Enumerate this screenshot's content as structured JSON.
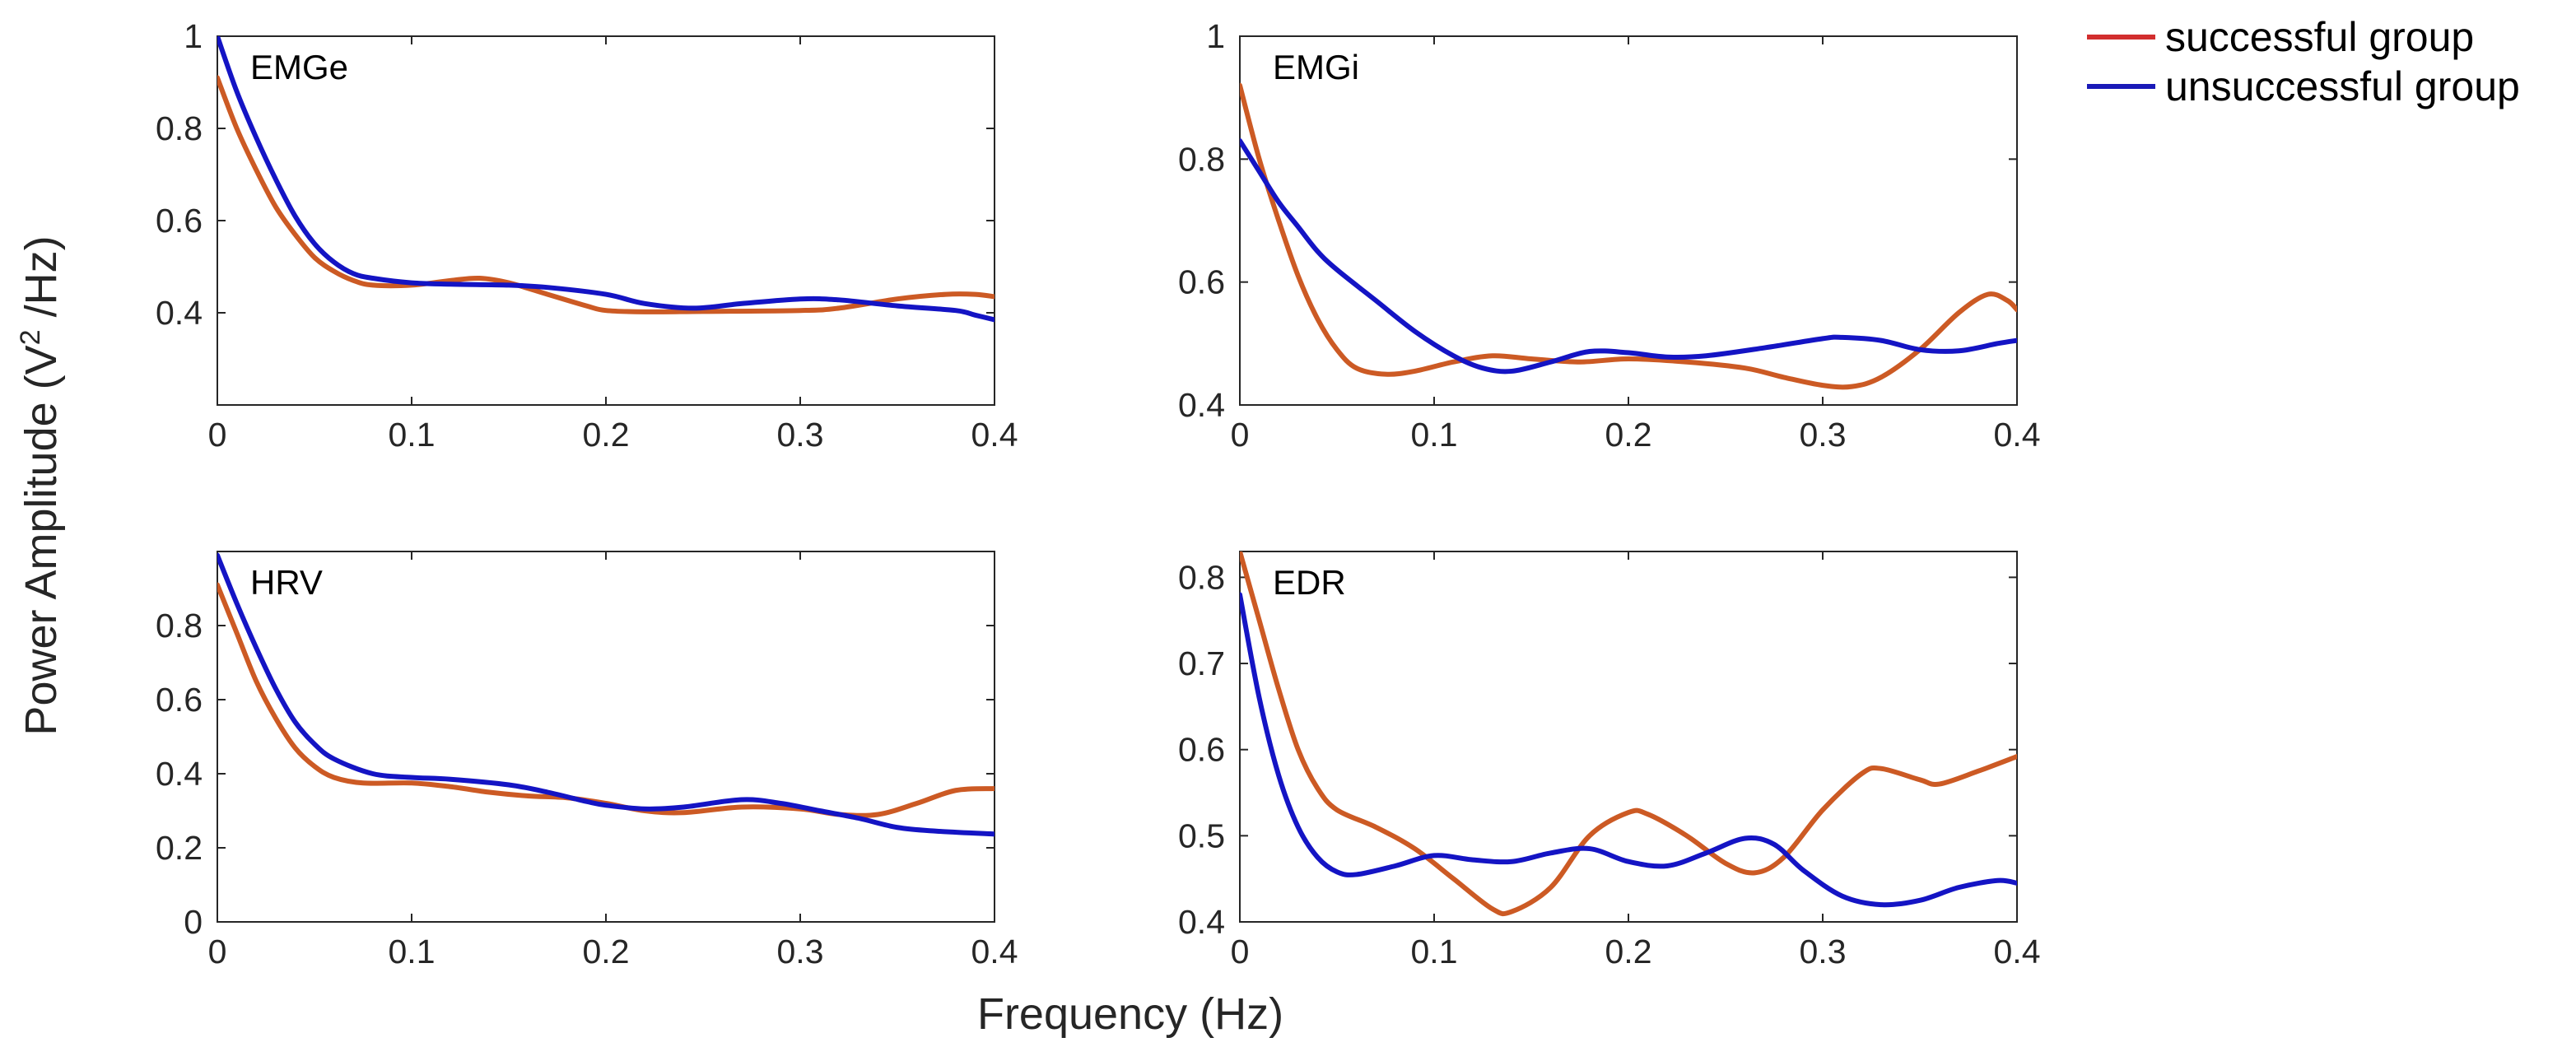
{
  "ylabel_parts": {
    "prefix": "Power Amplitude (V",
    "superscript": "2",
    "suffix": " /Hz)"
  },
  "xlabel": "Frequency (Hz)",
  "legend": [
    {
      "label": "successful group",
      "color": "#d22e2e"
    },
    {
      "label": "unsuccessful group",
      "color": "#1a1ab8"
    }
  ],
  "colors": {
    "successful_line": "#cc5a24",
    "unsuccessful_line": "#1414c4"
  },
  "chart_data": [
    {
      "type": "line",
      "title": "EMGe",
      "xlim": [
        0,
        0.4
      ],
      "ylim": [
        0.2,
        1.0
      ],
      "xticks": [
        "0",
        "0.1",
        "0.2",
        "0.3",
        "0.4"
      ],
      "xtick_values": [
        0,
        0.1,
        0.2,
        0.3,
        0.4
      ],
      "yticks": [
        "0.4",
        "0.6",
        "0.8",
        "1"
      ],
      "ytick_values": [
        0.4,
        0.6,
        0.8,
        1.0
      ],
      "series": [
        {
          "name": "successful group",
          "points": [
            [
              0,
              0.91
            ],
            [
              0.01,
              0.8
            ],
            [
              0.02,
              0.71
            ],
            [
              0.03,
              0.63
            ],
            [
              0.04,
              0.57
            ],
            [
              0.05,
              0.52
            ],
            [
              0.06,
              0.49
            ],
            [
              0.07,
              0.47
            ],
            [
              0.08,
              0.46
            ],
            [
              0.1,
              0.46
            ],
            [
              0.12,
              0.47
            ],
            [
              0.135,
              0.475
            ],
            [
              0.15,
              0.465
            ],
            [
              0.17,
              0.44
            ],
            [
              0.19,
              0.415
            ],
            [
              0.2,
              0.405
            ],
            [
              0.22,
              0.402
            ],
            [
              0.25,
              0.403
            ],
            [
              0.3,
              0.405
            ],
            [
              0.32,
              0.41
            ],
            [
              0.35,
              0.43
            ],
            [
              0.375,
              0.44
            ],
            [
              0.39,
              0.44
            ],
            [
              0.4,
              0.435
            ]
          ]
        },
        {
          "name": "unsuccessful group",
          "points": [
            [
              0,
              1.0
            ],
            [
              0.01,
              0.88
            ],
            [
              0.02,
              0.78
            ],
            [
              0.03,
              0.69
            ],
            [
              0.04,
              0.61
            ],
            [
              0.05,
              0.55
            ],
            [
              0.06,
              0.51
            ],
            [
              0.07,
              0.485
            ],
            [
              0.08,
              0.475
            ],
            [
              0.1,
              0.465
            ],
            [
              0.12,
              0.462
            ],
            [
              0.15,
              0.46
            ],
            [
              0.17,
              0.455
            ],
            [
              0.2,
              0.44
            ],
            [
              0.22,
              0.42
            ],
            [
              0.245,
              0.41
            ],
            [
              0.27,
              0.42
            ],
            [
              0.3,
              0.43
            ],
            [
              0.32,
              0.428
            ],
            [
              0.35,
              0.415
            ],
            [
              0.38,
              0.405
            ],
            [
              0.39,
              0.395
            ],
            [
              0.4,
              0.385
            ]
          ]
        }
      ]
    },
    {
      "type": "line",
      "title": "EMGi",
      "xlim": [
        0,
        0.4
      ],
      "ylim": [
        0.4,
        1.0
      ],
      "xticks": [
        "0",
        "0.1",
        "0.2",
        "0.3",
        "0.4"
      ],
      "xtick_values": [
        0,
        0.1,
        0.2,
        0.3,
        0.4
      ],
      "yticks": [
        "0.4",
        "0.6",
        "0.8",
        "1"
      ],
      "ytick_values": [
        0.4,
        0.6,
        0.8,
        1.0
      ],
      "series": [
        {
          "name": "successful group",
          "points": [
            [
              0,
              0.92
            ],
            [
              0.01,
              0.8
            ],
            [
              0.02,
              0.7
            ],
            [
              0.03,
              0.61
            ],
            [
              0.04,
              0.54
            ],
            [
              0.05,
              0.49
            ],
            [
              0.06,
              0.46
            ],
            [
              0.075,
              0.45
            ],
            [
              0.09,
              0.455
            ],
            [
              0.11,
              0.47
            ],
            [
              0.13,
              0.48
            ],
            [
              0.15,
              0.475
            ],
            [
              0.175,
              0.47
            ],
            [
              0.2,
              0.475
            ],
            [
              0.23,
              0.47
            ],
            [
              0.26,
              0.46
            ],
            [
              0.28,
              0.445
            ],
            [
              0.3,
              0.432
            ],
            [
              0.315,
              0.43
            ],
            [
              0.33,
              0.445
            ],
            [
              0.35,
              0.49
            ],
            [
              0.37,
              0.55
            ],
            [
              0.385,
              0.58
            ],
            [
              0.395,
              0.57
            ],
            [
              0.4,
              0.555
            ]
          ]
        },
        {
          "name": "unsuccessful group",
          "points": [
            [
              0,
              0.83
            ],
            [
              0.01,
              0.78
            ],
            [
              0.02,
              0.73
            ],
            [
              0.03,
              0.69
            ],
            [
              0.04,
              0.65
            ],
            [
              0.05,
              0.62
            ],
            [
              0.07,
              0.57
            ],
            [
              0.09,
              0.52
            ],
            [
              0.11,
              0.48
            ],
            [
              0.125,
              0.46
            ],
            [
              0.14,
              0.455
            ],
            [
              0.16,
              0.47
            ],
            [
              0.18,
              0.487
            ],
            [
              0.2,
              0.485
            ],
            [
              0.22,
              0.478
            ],
            [
              0.24,
              0.48
            ],
            [
              0.27,
              0.493
            ],
            [
              0.3,
              0.508
            ],
            [
              0.31,
              0.51
            ],
            [
              0.33,
              0.505
            ],
            [
              0.35,
              0.49
            ],
            [
              0.37,
              0.488
            ],
            [
              0.39,
              0.5
            ],
            [
              0.4,
              0.505
            ]
          ]
        }
      ]
    },
    {
      "type": "line",
      "title": "HRV",
      "xlim": [
        0,
        0.4
      ],
      "ylim": [
        0,
        1.0
      ],
      "xticks": [
        "0",
        "0.1",
        "0.2",
        "0.3",
        "0.4"
      ],
      "xtick_values": [
        0,
        0.1,
        0.2,
        0.3,
        0.4
      ],
      "yticks": [
        "0",
        "0.2",
        "0.4",
        "0.6",
        "0.8"
      ],
      "ytick_values": [
        0,
        0.2,
        0.4,
        0.6,
        0.8
      ],
      "series": [
        {
          "name": "successful group",
          "points": [
            [
              0,
              0.91
            ],
            [
              0.01,
              0.78
            ],
            [
              0.02,
              0.65
            ],
            [
              0.03,
              0.55
            ],
            [
              0.04,
              0.47
            ],
            [
              0.05,
              0.42
            ],
            [
              0.06,
              0.39
            ],
            [
              0.075,
              0.375
            ],
            [
              0.1,
              0.375
            ],
            [
              0.12,
              0.365
            ],
            [
              0.14,
              0.35
            ],
            [
              0.16,
              0.34
            ],
            [
              0.18,
              0.335
            ],
            [
              0.2,
              0.32
            ],
            [
              0.22,
              0.3
            ],
            [
              0.24,
              0.295
            ],
            [
              0.27,
              0.31
            ],
            [
              0.3,
              0.305
            ],
            [
              0.32,
              0.29
            ],
            [
              0.34,
              0.29
            ],
            [
              0.36,
              0.32
            ],
            [
              0.38,
              0.355
            ],
            [
              0.4,
              0.36
            ]
          ]
        },
        {
          "name": "unsuccessful group",
          "points": [
            [
              0,
              0.99
            ],
            [
              0.01,
              0.86
            ],
            [
              0.02,
              0.74
            ],
            [
              0.03,
              0.63
            ],
            [
              0.04,
              0.54
            ],
            [
              0.05,
              0.48
            ],
            [
              0.06,
              0.44
            ],
            [
              0.08,
              0.4
            ],
            [
              0.1,
              0.39
            ],
            [
              0.12,
              0.385
            ],
            [
              0.15,
              0.37
            ],
            [
              0.17,
              0.35
            ],
            [
              0.19,
              0.325
            ],
            [
              0.2,
              0.315
            ],
            [
              0.22,
              0.305
            ],
            [
              0.24,
              0.31
            ],
            [
              0.27,
              0.33
            ],
            [
              0.29,
              0.32
            ],
            [
              0.31,
              0.3
            ],
            [
              0.33,
              0.28
            ],
            [
              0.35,
              0.255
            ],
            [
              0.37,
              0.245
            ],
            [
              0.4,
              0.237
            ]
          ]
        }
      ]
    },
    {
      "type": "line",
      "title": "EDR",
      "xlim": [
        0,
        0.4
      ],
      "ylim": [
        0.4,
        0.83
      ],
      "xticks": [
        "0",
        "0.1",
        "0.2",
        "0.3",
        "0.4"
      ],
      "xtick_values": [
        0,
        0.1,
        0.2,
        0.3,
        0.4
      ],
      "yticks": [
        "0.4",
        "0.5",
        "0.6",
        "0.7",
        "0.8"
      ],
      "ytick_values": [
        0.4,
        0.5,
        0.6,
        0.7,
        0.8
      ],
      "series": [
        {
          "name": "successful group",
          "points": [
            [
              0,
              0.83
            ],
            [
              0.01,
              0.75
            ],
            [
              0.02,
              0.67
            ],
            [
              0.03,
              0.6
            ],
            [
              0.04,
              0.555
            ],
            [
              0.05,
              0.53
            ],
            [
              0.07,
              0.51
            ],
            [
              0.09,
              0.485
            ],
            [
              0.11,
              0.45
            ],
            [
              0.13,
              0.415
            ],
            [
              0.14,
              0.412
            ],
            [
              0.16,
              0.44
            ],
            [
              0.18,
              0.5
            ],
            [
              0.2,
              0.527
            ],
            [
              0.21,
              0.525
            ],
            [
              0.23,
              0.5
            ],
            [
              0.25,
              0.468
            ],
            [
              0.265,
              0.457
            ],
            [
              0.28,
              0.475
            ],
            [
              0.3,
              0.53
            ],
            [
              0.32,
              0.572
            ],
            [
              0.33,
              0.578
            ],
            [
              0.35,
              0.565
            ],
            [
              0.36,
              0.56
            ],
            [
              0.38,
              0.575
            ],
            [
              0.4,
              0.592
            ]
          ]
        },
        {
          "name": "unsuccessful group",
          "points": [
            [
              0,
              0.78
            ],
            [
              0.01,
              0.66
            ],
            [
              0.02,
              0.57
            ],
            [
              0.03,
              0.51
            ],
            [
              0.04,
              0.475
            ],
            [
              0.05,
              0.458
            ],
            [
              0.06,
              0.455
            ],
            [
              0.08,
              0.465
            ],
            [
              0.1,
              0.477
            ],
            [
              0.12,
              0.472
            ],
            [
              0.14,
              0.47
            ],
            [
              0.16,
              0.48
            ],
            [
              0.18,
              0.485
            ],
            [
              0.2,
              0.47
            ],
            [
              0.22,
              0.465
            ],
            [
              0.24,
              0.48
            ],
            [
              0.26,
              0.497
            ],
            [
              0.275,
              0.49
            ],
            [
              0.29,
              0.46
            ],
            [
              0.31,
              0.43
            ],
            [
              0.33,
              0.42
            ],
            [
              0.35,
              0.425
            ],
            [
              0.37,
              0.44
            ],
            [
              0.39,
              0.448
            ],
            [
              0.4,
              0.445
            ]
          ]
        }
      ]
    }
  ]
}
